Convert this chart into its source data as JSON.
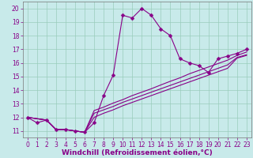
{
  "xlabel": "Windchill (Refroidissement éolien,°C)",
  "background_color": "#c8eaea",
  "grid_color": "#99ccbb",
  "line_color": "#880088",
  "xlim": [
    -0.5,
    23.5
  ],
  "ylim": [
    10.5,
    20.5
  ],
  "xticks": [
    0,
    1,
    2,
    3,
    4,
    5,
    6,
    7,
    8,
    9,
    10,
    11,
    12,
    13,
    14,
    15,
    16,
    17,
    18,
    19,
    20,
    21,
    22,
    23
  ],
  "yticks": [
    11,
    12,
    13,
    14,
    15,
    16,
    17,
    18,
    19,
    20
  ],
  "curve1_x": [
    0,
    1,
    2,
    3,
    4,
    5,
    6,
    7,
    8,
    9,
    10,
    11,
    12,
    13,
    14,
    15,
    16,
    17,
    18,
    19,
    20,
    21,
    22,
    23
  ],
  "curve1_y": [
    12.0,
    11.6,
    11.8,
    11.1,
    11.1,
    11.0,
    10.9,
    11.6,
    13.6,
    15.1,
    19.5,
    19.3,
    20.0,
    19.5,
    18.5,
    18.0,
    16.3,
    16.0,
    15.8,
    15.3,
    16.3,
    16.5,
    16.7,
    17.0
  ],
  "curve2_x": [
    0,
    2,
    3,
    4,
    5,
    6,
    7,
    8,
    9,
    10,
    11,
    12,
    13,
    14,
    15,
    16,
    17,
    18,
    19,
    20,
    21,
    22,
    23
  ],
  "curve2_y": [
    12.0,
    11.8,
    11.1,
    11.1,
    11.0,
    10.9,
    12.3,
    12.55,
    12.8,
    13.1,
    13.35,
    13.6,
    13.85,
    14.1,
    14.35,
    14.6,
    14.85,
    15.1,
    15.35,
    15.6,
    15.85,
    16.4,
    16.6
  ],
  "curve3_x": [
    0,
    2,
    3,
    4,
    5,
    6,
    7,
    8,
    9,
    10,
    11,
    12,
    13,
    14,
    15,
    16,
    17,
    18,
    19,
    20,
    21,
    22,
    23
  ],
  "curve3_y": [
    12.0,
    11.8,
    11.1,
    11.1,
    11.0,
    10.9,
    12.5,
    12.75,
    13.05,
    13.3,
    13.6,
    13.85,
    14.1,
    14.38,
    14.65,
    14.9,
    15.2,
    15.45,
    15.7,
    15.95,
    16.2,
    16.55,
    16.8
  ],
  "curve4_x": [
    0,
    2,
    3,
    4,
    5,
    6,
    7,
    8,
    9,
    10,
    11,
    12,
    13,
    14,
    15,
    16,
    17,
    18,
    19,
    20,
    21,
    22,
    23
  ],
  "curve4_y": [
    12.0,
    11.8,
    11.1,
    11.1,
    11.0,
    10.9,
    12.0,
    12.3,
    12.55,
    12.85,
    13.1,
    13.35,
    13.6,
    13.85,
    14.1,
    14.35,
    14.6,
    14.85,
    15.1,
    15.35,
    15.6,
    16.35,
    16.55
  ],
  "xlabel_fontsize": 6.5,
  "tick_fontsize": 5.5
}
